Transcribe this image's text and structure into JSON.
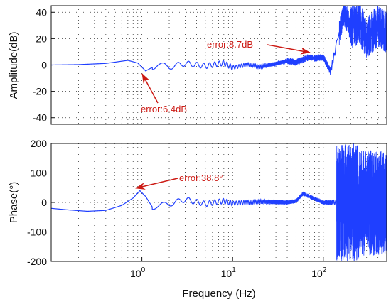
{
  "chart_data": [
    {
      "type": "line",
      "panel": "amplitude",
      "xscale": "log",
      "xlim": [
        0.1,
        500
      ],
      "ylim": [
        -45,
        45
      ],
      "yticks": [
        40,
        20,
        0,
        -20,
        -40
      ],
      "ylabel": "Amplitude(dB)",
      "grid": "dotted",
      "series_color": "#1f3fff",
      "x": [
        0.1,
        0.2,
        0.4,
        0.7,
        0.9,
        1.1,
        1.5,
        2,
        3,
        5,
        8,
        10,
        15,
        20,
        30,
        40,
        50,
        70,
        80,
        100,
        120,
        150,
        170,
        200,
        250,
        300,
        400,
        500
      ],
      "y": [
        0,
        0.3,
        1.2,
        3.5,
        1.5,
        -4.5,
        0.5,
        -1.5,
        1.2,
        -0.8,
        1.5,
        -2,
        0.5,
        -1.5,
        1,
        3,
        2,
        6,
        5,
        6,
        -5,
        25,
        40,
        28,
        32,
        20,
        30,
        25
      ],
      "annotations": [
        {
          "text": "error:6.4dB",
          "x": 1.2,
          "y": -4.5,
          "color": "#cc1a14"
        },
        {
          "text": "error:8.7dB",
          "x": 75,
          "y": 6.5,
          "color": "#cc1a14"
        }
      ]
    },
    {
      "type": "line",
      "panel": "phase",
      "xscale": "log",
      "xlim": [
        0.1,
        500
      ],
      "ylim": [
        -200,
        200
      ],
      "yticks": [
        200,
        100,
        0,
        -100,
        -200
      ],
      "xticks": [
        "10^0",
        "10^1",
        "10^2"
      ],
      "xlabel": "Frequency (Hz)",
      "ylabel": "Phase(°)",
      "grid": "dotted",
      "series_color": "#1f3fff",
      "x": [
        0.1,
        0.15,
        0.25,
        0.4,
        0.6,
        0.8,
        0.95,
        1.1,
        1.3,
        2,
        3,
        5,
        8,
        10,
        20,
        40,
        50,
        60,
        70,
        100,
        140,
        200,
        300,
        500
      ],
      "y": [
        -20,
        -25,
        -30,
        -27,
        -10,
        15,
        40,
        20,
        -15,
        -5,
        10,
        -5,
        5,
        -3,
        3,
        0,
        5,
        30,
        20,
        0,
        0,
        0,
        0,
        0
      ],
      "annotations": [
        {
          "text": "error:38.8°",
          "x": 0.95,
          "y": 40,
          "color": "#cc1a14"
        }
      ]
    }
  ]
}
